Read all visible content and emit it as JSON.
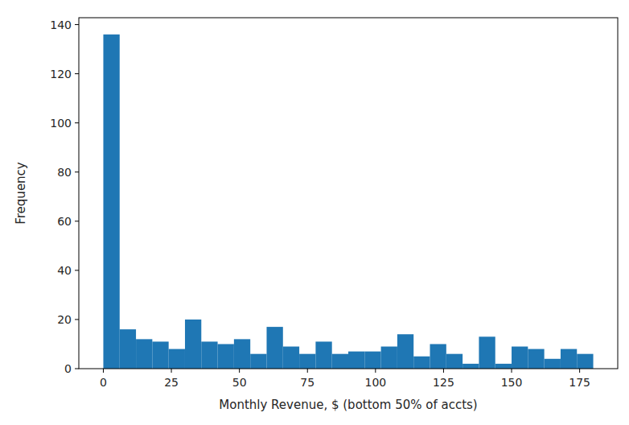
{
  "chart_data": {
    "type": "histogram",
    "x_label": "Monthly Revenue, $ (bottom 50% of accts)",
    "y_label": "Frequency",
    "bins": [
      0,
      6,
      12,
      18,
      24,
      30,
      36,
      42,
      48,
      54,
      60,
      66,
      72,
      78,
      84,
      90,
      96,
      102,
      108,
      114,
      120,
      126,
      132,
      138,
      144,
      150,
      156,
      162,
      168,
      174,
      180
    ],
    "values": [
      136,
      16,
      12,
      11,
      8,
      20,
      11,
      10,
      12,
      6,
      17,
      9,
      6,
      11,
      6,
      7,
      7,
      9,
      14,
      5,
      10,
      6,
      2,
      13,
      2,
      9,
      8,
      4,
      8,
      6
    ],
    "color": "#1f77b4",
    "xlim": [
      -9,
      189
    ],
    "ylim": [
      0,
      142.8
    ],
    "xticks": [
      0,
      25,
      50,
      75,
      100,
      125,
      150,
      175
    ],
    "yticks": [
      0,
      20,
      40,
      60,
      80,
      100,
      120,
      140
    ],
    "grid": false
  }
}
